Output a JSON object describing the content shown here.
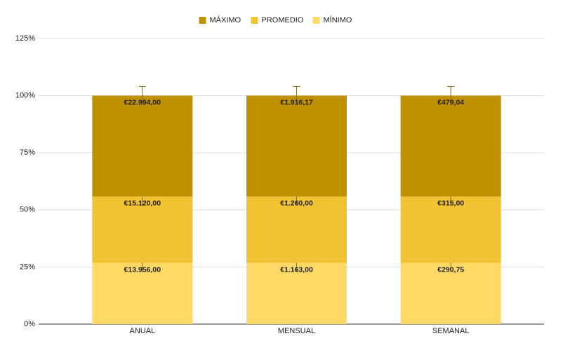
{
  "chart_data": {
    "type": "stacked-percent-bar",
    "categories": [
      "ANUAL",
      "MENSUAL",
      "SEMANAL"
    ],
    "series": [
      {
        "name": "MÁXIMO",
        "color": "#bf9000",
        "values": [
          22994,
          1916.17,
          479.04
        ],
        "value_labels": [
          "€22.994,00",
          "€1.916,17",
          "€479,04"
        ]
      },
      {
        "name": "PROMEDIO",
        "color": "#f1c232",
        "values": [
          15120,
          1260,
          315
        ],
        "value_labels": [
          "€15.120,00",
          "€1.260,00",
          "€315,00"
        ]
      },
      {
        "name": "MÍNIMO",
        "color": "#ffd966",
        "values": [
          13956,
          1163,
          290.75
        ],
        "value_labels": [
          "€13.956,00",
          "€1.163,00",
          "€290,75"
        ]
      }
    ],
    "error_bar": 4,
    "ylim": [
      0,
      125
    ],
    "yticks": [
      {
        "value": 0,
        "label": "0%"
      },
      {
        "value": 25,
        "label": "25%"
      },
      {
        "value": 50,
        "label": "50%"
      },
      {
        "value": 75,
        "label": "75%"
      },
      {
        "value": 100,
        "label": "100%"
      },
      {
        "value": 125,
        "label": "125%"
      }
    ],
    "grid": true,
    "legend": "top"
  }
}
